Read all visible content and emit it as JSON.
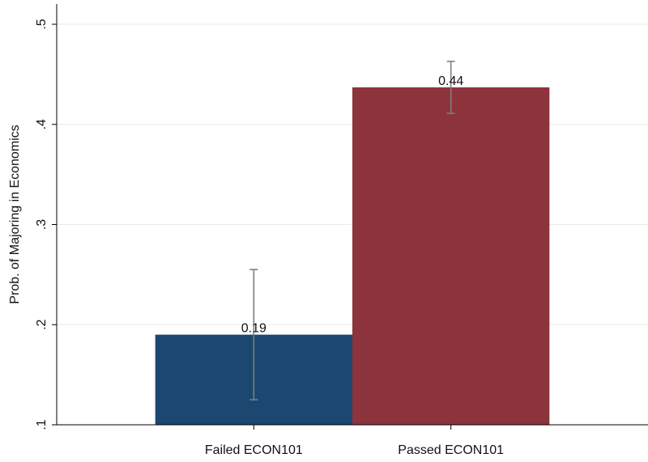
{
  "chart_data": {
    "type": "bar",
    "ylabel": "Prob. of Majoring in Economics",
    "xlabel": "",
    "ylim": [
      0.1,
      0.5
    ],
    "yticks": [
      0.1,
      0.2,
      0.3,
      0.4,
      0.5
    ],
    "ytick_labels": [
      ".1",
      ".2",
      ".3",
      ".4",
      ".5"
    ],
    "grid": true,
    "categories": [
      "Failed ECON101",
      "Passed ECON101"
    ],
    "values": [
      0.19,
      0.437
    ],
    "value_labels": [
      "0.19",
      "0.44"
    ],
    "error_low": [
      0.125,
      0.411
    ],
    "error_high": [
      0.255,
      0.463
    ],
    "colors": [
      "#1b4770",
      "#8d333b"
    ],
    "error_bar_color": "#7f7f7f",
    "grid_color": "#eaeaea"
  }
}
